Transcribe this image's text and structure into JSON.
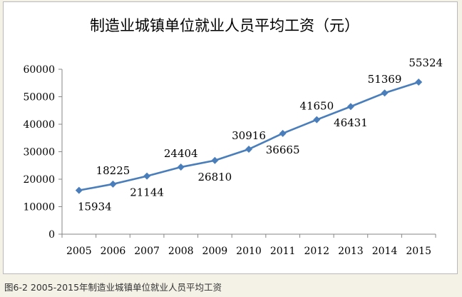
{
  "caption": "图6-2 2005-2015年制造业城镇单位就业人员平均工资",
  "colors": {
    "line": "#4a7ebb",
    "marker": "#4a7ebb",
    "text": "#000000",
    "axis": "#868686"
  },
  "chart_data": {
    "type": "line",
    "title": "制造业城镇单位就业人员平均工资（元）",
    "xlabel": "",
    "ylabel": "",
    "categories": [
      "2005",
      "2006",
      "2007",
      "2008",
      "2009",
      "2010",
      "2011",
      "2012",
      "2013",
      "2014",
      "2015"
    ],
    "yticks": [
      "0",
      "10000",
      "20000",
      "30000",
      "40000",
      "50000",
      "60000"
    ],
    "ylim": [
      0,
      60000
    ],
    "grid": false,
    "legend": "none",
    "series": [
      {
        "values": [
          15934,
          18225,
          21144,
          24404,
          26810,
          30916,
          36665,
          41650,
          46431,
          51369,
          55324
        ],
        "labels": [
          "15934",
          "18225",
          "21144",
          "24404",
          "26810",
          "30916",
          "36665",
          "41650",
          "46431",
          "51369",
          "55324"
        ]
      }
    ]
  }
}
